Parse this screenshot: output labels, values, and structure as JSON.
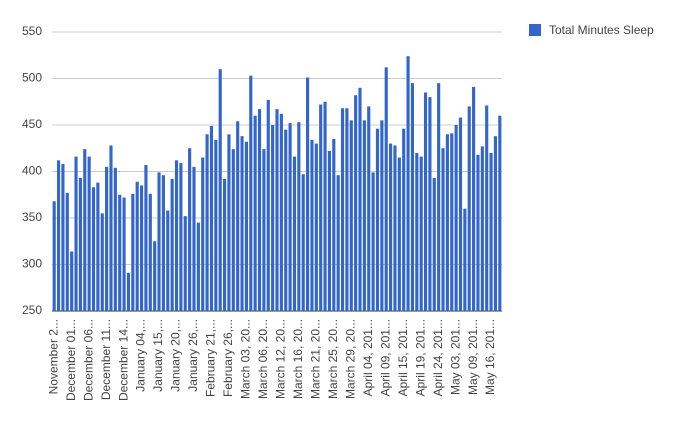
{
  "chart_data": {
    "type": "bar",
    "series": [
      {
        "name": "Total Minutes Sleep",
        "color": "#3366cc",
        "values": [
          368,
          412,
          408,
          377,
          314,
          416,
          393,
          424,
          416,
          383,
          388,
          355,
          405,
          428,
          404,
          375,
          372,
          291,
          376,
          389,
          385,
          407,
          376,
          325,
          399,
          396,
          358,
          392,
          412,
          409,
          352,
          425,
          405,
          345,
          415,
          440,
          449,
          434,
          510,
          392,
          440,
          424,
          454,
          438,
          432,
          503,
          460,
          467,
          424,
          477,
          450,
          467,
          462,
          445,
          452,
          416,
          453,
          397,
          501,
          434,
          430,
          472,
          475,
          422,
          435,
          396,
          468,
          468,
          455,
          482,
          490,
          455,
          470,
          399,
          446,
          455,
          512,
          430,
          428,
          415,
          446,
          524,
          495,
          420,
          416,
          485,
          480,
          393,
          495,
          425,
          440,
          441,
          450,
          458,
          360,
          470,
          491,
          418,
          427,
          471,
          420,
          438,
          460
        ]
      }
    ],
    "categories": [
      "November 2...",
      null,
      null,
      null,
      "December 01...",
      null,
      null,
      null,
      "December 06...",
      null,
      null,
      null,
      "December 11...",
      null,
      null,
      null,
      "December 14...",
      null,
      null,
      null,
      "January 04,...",
      null,
      null,
      null,
      "January 15,...",
      null,
      null,
      null,
      "January 20,...",
      null,
      null,
      null,
      "January 26,...",
      null,
      null,
      null,
      "February 21,...",
      null,
      null,
      null,
      "February 26,...",
      null,
      null,
      null,
      "March 03, 20...",
      null,
      null,
      null,
      "March 06, 20...",
      null,
      null,
      null,
      "March 12, 20...",
      null,
      null,
      null,
      "March 16, 20...",
      null,
      null,
      null,
      "March 21, 20...",
      null,
      null,
      null,
      "March 25, 20...",
      null,
      null,
      null,
      "March 29, 20...",
      null,
      null,
      null,
      "April 04, 201...",
      null,
      null,
      null,
      "April 09, 201...",
      null,
      null,
      null,
      "April 15, 201...",
      null,
      null,
      null,
      "April 19, 201...",
      null,
      null,
      null,
      "April 24, 201...",
      null,
      null,
      null,
      "May 03, 201...",
      null,
      null,
      null,
      "May 09, 201...",
      null,
      null,
      null,
      "May 16, 201...",
      null,
      null
    ],
    "ylim": [
      250,
      550
    ],
    "yticks": [
      250,
      300,
      350,
      400,
      450,
      500,
      550
    ],
    "grid": true,
    "legend": "right"
  }
}
